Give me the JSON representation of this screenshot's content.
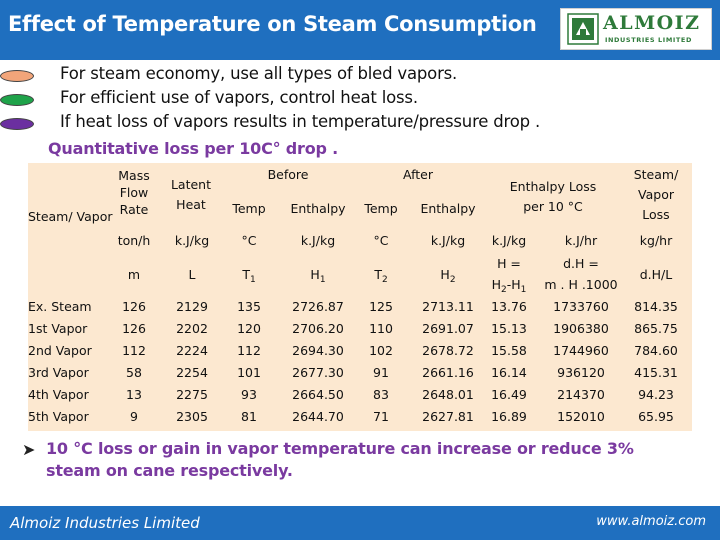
{
  "header": {
    "title": "Effect of Temperature on Steam Consumption",
    "logo_name": "ALMOIZ",
    "logo_sub": "INDUSTRIES LIMITED"
  },
  "bullets": [
    {
      "text": "For steam economy, use all types of bled vapors.",
      "color": "#f2a57a"
    },
    {
      "text": "For efficient use of vapors, control heat loss.",
      "color": "#1fa34a"
    },
    {
      "text": "If heat loss of vapors results in temperature/pressure drop .",
      "color": "#6b2fa0"
    }
  ],
  "subheading": "Quantitative loss per 10C° drop .",
  "table": {
    "group_headers": {
      "before": "Before",
      "after": "After",
      "enthalpy_loss": "Enthalpy Loss per 10 °C"
    },
    "col_headers": {
      "steam_vapor": "Steam/ Vapor",
      "mass_flow": "Mass Flow Rate",
      "latent_heat": "Latent Heat",
      "temp": "Temp",
      "enthalpy": "Enthalpy",
      "steam_vapor_loss": "Steam/ Vapor Loss"
    },
    "units": {
      "mass_flow": "ton/h",
      "latent": "k.J/kg",
      "t1": "°C",
      "h1": "k.J/kg",
      "t2": "°C",
      "h2": "k.J/kg",
      "loss_kg": "k.J/kg",
      "loss_hr": "k.J/hr",
      "steam_loss": "kg/hr"
    },
    "symbols": {
      "m": "m",
      "L": "L",
      "T1": "T",
      "H1": "H",
      "T2": "T",
      "H2": "H",
      "h_eq": "H =",
      "h_diff": "H",
      "dh_eq": "d.H =",
      "dh_formula": "m . H .1000",
      "dh_L": "d.H/L"
    },
    "rows": [
      [
        "Ex. Steam",
        "126",
        "2129",
        "135",
        "2726.87",
        "125",
        "2713.11",
        "13.76",
        "1733760",
        "814.35"
      ],
      [
        "1st Vapor",
        "126",
        "2202",
        "120",
        "2706.20",
        "110",
        "2691.07",
        "15.13",
        "1906380",
        "865.75"
      ],
      [
        "2nd Vapor",
        "112",
        "2224",
        "112",
        "2694.30",
        "102",
        "2678.72",
        "15.58",
        "1744960",
        "784.60"
      ],
      [
        "3rd Vapor",
        "58",
        "2254",
        "101",
        "2677.30",
        "91",
        "2661.16",
        "16.14",
        "936120",
        "415.31"
      ],
      [
        "4th Vapor",
        "13",
        "2275",
        "93",
        "2664.50",
        "83",
        "2648.01",
        "16.49",
        "214370",
        "94.23"
      ],
      [
        "5th Vapor",
        "9",
        "2305",
        "81",
        "2644.70",
        "71",
        "2627.81",
        "16.89",
        "152010",
        "65.95"
      ]
    ]
  },
  "conclusion": "10 °C loss or gain in vapor temperature can increase or reduce 3% steam on cane respectively.",
  "footer": {
    "left": "Almoiz Industries Limited",
    "right": "www.almoiz.com"
  }
}
